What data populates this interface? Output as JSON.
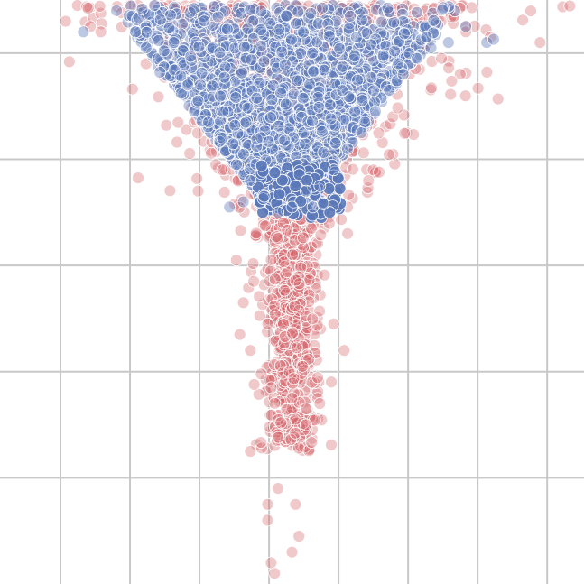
{
  "chart_data": {
    "type": "scatter",
    "title": "",
    "xlabel": "",
    "ylabel": "",
    "xlim": [
      0,
      8.4
    ],
    "ylim": [
      -5.5,
      0
    ],
    "grid": true,
    "grid_x_values": [
      0.87,
      1.87,
      2.87,
      3.87,
      4.87,
      5.87,
      6.87,
      7.87
    ],
    "grid_y_values": [
      -0.5,
      -1.5,
      -2.5,
      -3.5,
      -4.5
    ],
    "series": [
      {
        "color": "#d5646b",
        "opacity": 0.35,
        "points": [
          [
            1.3,
            -0.25
          ],
          [
            1.45,
            -0.3
          ],
          [
            1.75,
            -0.12
          ],
          [
            2.1,
            -0.6
          ],
          [
            6.35,
            -0.55
          ],
          [
            6.7,
            -0.3
          ],
          [
            7.05,
            -0.35
          ],
          [
            2.85,
            -1.8
          ],
          [
            3.2,
            -1.6
          ],
          [
            5.3,
            -1.7
          ],
          [
            5.0,
            -1.95
          ],
          [
            5.0,
            -2.2
          ],
          [
            3.4,
            -2.45
          ],
          [
            3.65,
            -2.65
          ],
          [
            3.5,
            -2.85
          ],
          [
            3.85,
            -3.05
          ],
          [
            3.45,
            -3.15
          ],
          [
            3.6,
            -3.3
          ],
          [
            4.8,
            -3.05
          ],
          [
            4.95,
            -3.3
          ],
          [
            4.35,
            -3.45
          ],
          [
            3.9,
            -3.65
          ],
          [
            4.2,
            -3.75
          ],
          [
            4.4,
            -3.85
          ],
          [
            3.6,
            -4.25
          ],
          [
            4.6,
            -3.8
          ],
          [
            4.4,
            -4.0
          ],
          [
            3.85,
            -4.75
          ],
          [
            3.85,
            -4.9
          ],
          [
            4.0,
            -4.6
          ],
          [
            4.25,
            -4.75
          ],
          [
            4.2,
            -5.2
          ],
          [
            3.95,
            -5.4
          ],
          [
            4.3,
            -5.05
          ],
          [
            3.9,
            -5.3
          ]
        ]
      },
      {
        "color": "#5a78b8",
        "opacity": 0.4,
        "points": [
          [
            1.2,
            -0.3
          ],
          [
            1.95,
            -0.3
          ],
          [
            2.1,
            -0.45
          ],
          [
            2.3,
            -0.68
          ],
          [
            2.5,
            -0.4
          ],
          [
            2.7,
            -0.8
          ],
          [
            2.85,
            -0.95
          ],
          [
            3.0,
            -1.15
          ],
          [
            3.2,
            -1.3
          ],
          [
            3.4,
            -1.55
          ],
          [
            3.6,
            -1.7
          ],
          [
            3.8,
            -1.85
          ],
          [
            4.0,
            -2.0
          ],
          [
            4.2,
            -1.95
          ],
          [
            4.4,
            -1.8
          ],
          [
            4.6,
            -1.75
          ],
          [
            4.8,
            -1.6
          ],
          [
            5.0,
            -1.4
          ],
          [
            5.2,
            -1.25
          ],
          [
            5.4,
            -1.05
          ],
          [
            5.6,
            -0.85
          ],
          [
            5.8,
            -0.7
          ],
          [
            6.0,
            -0.55
          ],
          [
            6.2,
            -0.45
          ],
          [
            6.45,
            -0.4
          ],
          [
            6.7,
            -0.25
          ],
          [
            7.0,
            -0.4
          ],
          [
            7.1,
            -0.37
          ],
          [
            3.3,
            -1.95
          ],
          [
            3.5,
            -1.9
          ],
          [
            4.5,
            -1.95
          ],
          [
            4.65,
            -1.92
          ]
        ]
      }
    ]
  }
}
